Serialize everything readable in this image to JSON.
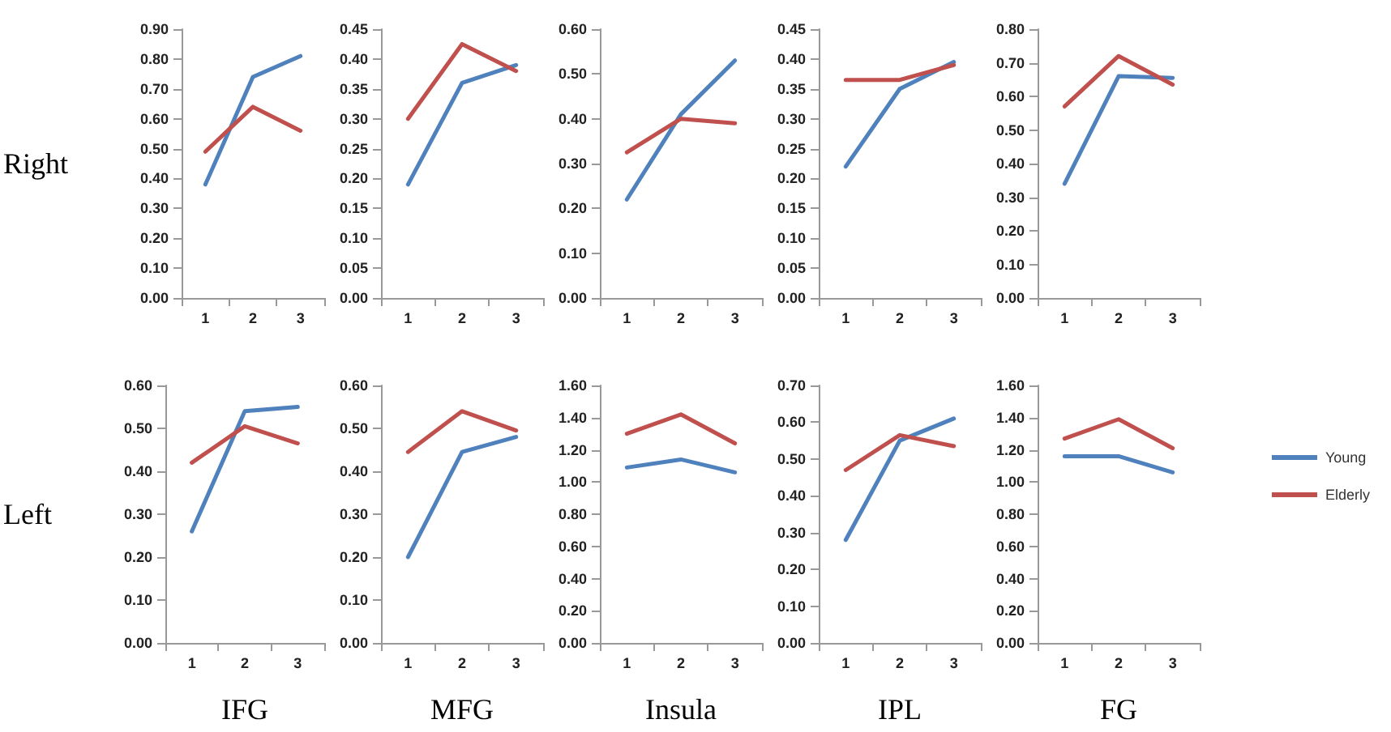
{
  "chart_data": [
    {
      "type": "line",
      "ylabel": "Right",
      "categories": [
        "1",
        "2",
        "3"
      ],
      "marker": "none",
      "line_style": "solid",
      "ylim": [
        0,
        0.9
      ],
      "yticks": [
        {
          "value": 0,
          "label": "0.00"
        },
        {
          "value": 0.1,
          "label": "0.10"
        },
        {
          "value": 0.2,
          "label": "0.20"
        },
        {
          "value": 0.3,
          "label": "0.30"
        },
        {
          "value": 0.4,
          "label": "0.40"
        },
        {
          "value": 0.5,
          "label": "0.50"
        },
        {
          "value": 0.6,
          "label": "0.60"
        },
        {
          "value": 0.7,
          "label": "0.70"
        },
        {
          "value": 0.8,
          "label": "0.80"
        },
        {
          "value": 0.9,
          "label": "0.90"
        }
      ],
      "series": [
        {
          "color": "#4f81bd",
          "values": [
            0.38,
            0.74,
            0.81
          ]
        },
        {
          "color": "#c0504d",
          "values": [
            0.49,
            0.64,
            0.56
          ]
        }
      ]
    },
    {
      "type": "line",
      "categories": [
        "1",
        "2",
        "3"
      ],
      "marker": "none",
      "line_style": "solid",
      "ylim": [
        0,
        0.45
      ],
      "yticks": [
        {
          "value": 0,
          "label": "0.00"
        },
        {
          "value": 0.05,
          "label": "0.05"
        },
        {
          "value": 0.1,
          "label": "0.10"
        },
        {
          "value": 0.15,
          "label": "0.15"
        },
        {
          "value": 0.2,
          "label": "0.20"
        },
        {
          "value": 0.25,
          "label": "0.25"
        },
        {
          "value": 0.3,
          "label": "0.30"
        },
        {
          "value": 0.35,
          "label": "0.35"
        },
        {
          "value": 0.4,
          "label": "0.40"
        },
        {
          "value": 0.45,
          "label": "0.45"
        }
      ],
      "series": [
        {
          "color": "#4f81bd",
          "values": [
            0.19,
            0.36,
            0.39
          ]
        },
        {
          "color": "#c0504d",
          "values": [
            0.3,
            0.425,
            0.38
          ]
        }
      ]
    },
    {
      "type": "line",
      "categories": [
        "1",
        "2",
        "3"
      ],
      "marker": "none",
      "line_style": "solid",
      "ylim": [
        0,
        0.6
      ],
      "yticks": [
        {
          "value": 0,
          "label": "0.00"
        },
        {
          "value": 0.1,
          "label": "0.10"
        },
        {
          "value": 0.2,
          "label": "0.20"
        },
        {
          "value": 0.3,
          "label": "0.30"
        },
        {
          "value": 0.4,
          "label": "0.40"
        },
        {
          "value": 0.5,
          "label": "0.50"
        },
        {
          "value": 0.6,
          "label": "0.60"
        }
      ],
      "series": [
        {
          "color": "#4f81bd",
          "values": [
            0.22,
            0.41,
            0.53
          ]
        },
        {
          "color": "#c0504d",
          "values": [
            0.325,
            0.4,
            0.39
          ]
        }
      ]
    },
    {
      "type": "line",
      "categories": [
        "1",
        "2",
        "3"
      ],
      "marker": "none",
      "line_style": "solid",
      "ylim": [
        0,
        0.45
      ],
      "yticks": [
        {
          "value": 0,
          "label": "0.00"
        },
        {
          "value": 0.05,
          "label": "0.05"
        },
        {
          "value": 0.1,
          "label": "0.10"
        },
        {
          "value": 0.15,
          "label": "0.15"
        },
        {
          "value": 0.2,
          "label": "0.20"
        },
        {
          "value": 0.25,
          "label": "0.25"
        },
        {
          "value": 0.3,
          "label": "0.30"
        },
        {
          "value": 0.35,
          "label": "0.35"
        },
        {
          "value": 0.4,
          "label": "0.40"
        },
        {
          "value": 0.45,
          "label": "0.45"
        }
      ],
      "series": [
        {
          "color": "#4f81bd",
          "values": [
            0.22,
            0.35,
            0.395
          ]
        },
        {
          "color": "#c0504d",
          "values": [
            0.365,
            0.365,
            0.39
          ]
        }
      ]
    },
    {
      "type": "line",
      "categories": [
        "1",
        "2",
        "3"
      ],
      "marker": "none",
      "line_style": "solid",
      "ylim": [
        0,
        0.8
      ],
      "yticks": [
        {
          "value": 0,
          "label": "0.00"
        },
        {
          "value": 0.1,
          "label": "0.10"
        },
        {
          "value": 0.2,
          "label": "0.20"
        },
        {
          "value": 0.3,
          "label": "0.30"
        },
        {
          "value": 0.4,
          "label": "0.40"
        },
        {
          "value": 0.5,
          "label": "0.50"
        },
        {
          "value": 0.6,
          "label": "0.60"
        },
        {
          "value": 0.7,
          "label": "0.70"
        },
        {
          "value": 0.8,
          "label": "0.80"
        }
      ],
      "series": [
        {
          "color": "#4f81bd",
          "values": [
            0.34,
            0.66,
            0.655
          ]
        },
        {
          "color": "#c0504d",
          "values": [
            0.57,
            0.72,
            0.635
          ]
        }
      ]
    },
    {
      "type": "line",
      "ylabel": "Left",
      "xlabel": "IFG",
      "categories": [
        "1",
        "2",
        "3"
      ],
      "marker": "none",
      "line_style": "solid",
      "ylim": [
        0,
        0.6
      ],
      "yticks": [
        {
          "value": 0,
          "label": "0.00"
        },
        {
          "value": 0.1,
          "label": "0.10"
        },
        {
          "value": 0.2,
          "label": "0.20"
        },
        {
          "value": 0.3,
          "label": "0.30"
        },
        {
          "value": 0.4,
          "label": "0.40"
        },
        {
          "value": 0.5,
          "label": "0.50"
        },
        {
          "value": 0.6,
          "label": "0.60"
        }
      ],
      "series": [
        {
          "color": "#4f81bd",
          "values": [
            0.26,
            0.54,
            0.55
          ]
        },
        {
          "color": "#c0504d",
          "values": [
            0.42,
            0.505,
            0.465
          ]
        }
      ]
    },
    {
      "type": "line",
      "xlabel": "MFG",
      "categories": [
        "1",
        "2",
        "3"
      ],
      "marker": "none",
      "line_style": "solid",
      "ylim": [
        0,
        0.6
      ],
      "yticks": [
        {
          "value": 0,
          "label": "0.00"
        },
        {
          "value": 0.1,
          "label": "0.10"
        },
        {
          "value": 0.2,
          "label": "0.20"
        },
        {
          "value": 0.3,
          "label": "0.30"
        },
        {
          "value": 0.4,
          "label": "0.40"
        },
        {
          "value": 0.5,
          "label": "0.50"
        },
        {
          "value": 0.6,
          "label": "0.60"
        }
      ],
      "series": [
        {
          "color": "#4f81bd",
          "values": [
            0.2,
            0.445,
            0.48
          ]
        },
        {
          "color": "#c0504d",
          "values": [
            0.445,
            0.54,
            0.495
          ]
        }
      ]
    },
    {
      "type": "line",
      "xlabel": "Insula",
      "categories": [
        "1",
        "2",
        "3"
      ],
      "marker": "none",
      "line_style": "solid",
      "ylim": [
        0,
        1.6
      ],
      "yticks": [
        {
          "value": 0,
          "label": "0.00"
        },
        {
          "value": 0.2,
          "label": "0.20"
        },
        {
          "value": 0.4,
          "label": "0.40"
        },
        {
          "value": 0.6,
          "label": "0.60"
        },
        {
          "value": 0.8,
          "label": "0.80"
        },
        {
          "value": 1,
          "label": "1.00"
        },
        {
          "value": 1.2,
          "label": "1.20"
        },
        {
          "value": 1.4,
          "label": "1.40"
        },
        {
          "value": 1.6,
          "label": "1.60"
        }
      ],
      "series": [
        {
          "color": "#4f81bd",
          "values": [
            1.09,
            1.14,
            1.06
          ]
        },
        {
          "color": "#c0504d",
          "values": [
            1.3,
            1.42,
            1.24
          ]
        }
      ]
    },
    {
      "type": "line",
      "xlabel": "IPL",
      "categories": [
        "1",
        "2",
        "3"
      ],
      "marker": "none",
      "line_style": "solid",
      "ylim": [
        0,
        0.7
      ],
      "yticks": [
        {
          "value": 0,
          "label": "0.00"
        },
        {
          "value": 0.1,
          "label": "0.10"
        },
        {
          "value": 0.2,
          "label": "0.20"
        },
        {
          "value": 0.3,
          "label": "0.30"
        },
        {
          "value": 0.4,
          "label": "0.40"
        },
        {
          "value": 0.5,
          "label": "0.50"
        },
        {
          "value": 0.6,
          "label": "0.60"
        },
        {
          "value": 0.7,
          "label": "0.70"
        }
      ],
      "series": [
        {
          "color": "#4f81bd",
          "values": [
            0.28,
            0.55,
            0.61
          ]
        },
        {
          "color": "#c0504d",
          "values": [
            0.47,
            0.565,
            0.535
          ]
        }
      ]
    },
    {
      "type": "line",
      "xlabel": "FG",
      "categories": [
        "1",
        "2",
        "3"
      ],
      "marker": "none",
      "line_style": "solid",
      "legend": "right",
      "ylim": [
        0,
        1.6
      ],
      "yticks": [
        {
          "value": 0,
          "label": "0.00"
        },
        {
          "value": 0.2,
          "label": "0.20"
        },
        {
          "value": 0.4,
          "label": "0.40"
        },
        {
          "value": 0.6,
          "label": "0.60"
        },
        {
          "value": 0.8,
          "label": "0.80"
        },
        {
          "value": 1,
          "label": "1.00"
        },
        {
          "value": 1.2,
          "label": "1.20"
        },
        {
          "value": 1.4,
          "label": "1.40"
        },
        {
          "value": 1.6,
          "label": "1.60"
        }
      ],
      "series": [
        {
          "name": "Young",
          "color": "#4f81bd",
          "values": [
            1.16,
            1.16,
            1.06
          ]
        },
        {
          "name": "Elderly",
          "color": "#c0504d",
          "values": [
            1.27,
            1.39,
            1.21
          ]
        }
      ]
    }
  ]
}
